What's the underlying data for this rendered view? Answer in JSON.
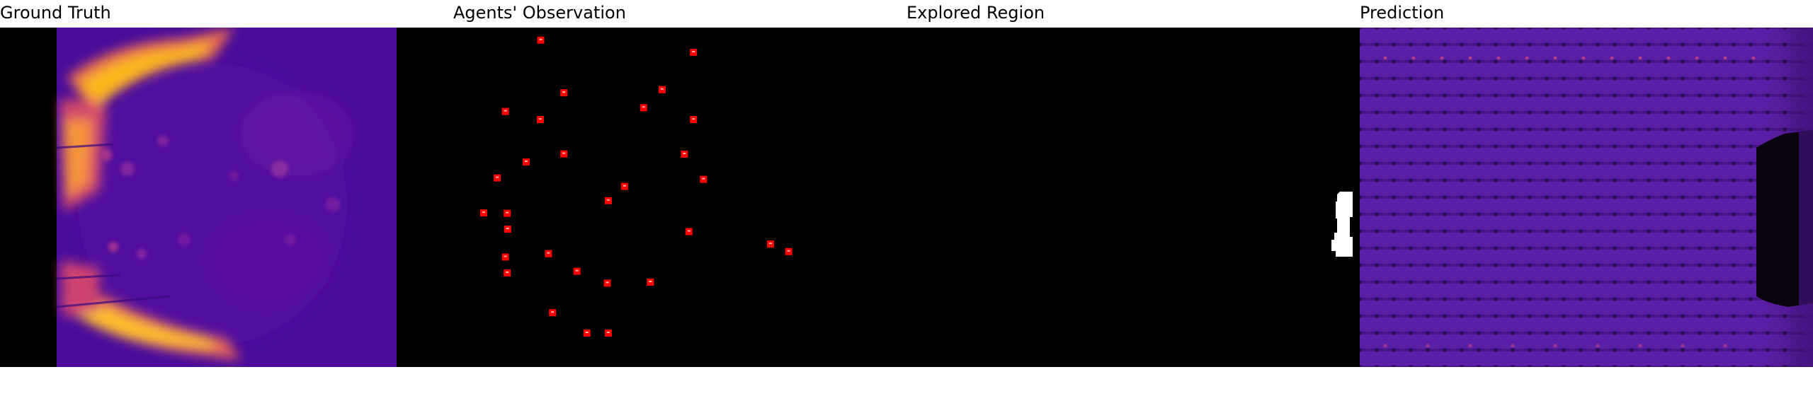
{
  "panels": [
    {
      "key": "ground_truth",
      "title": "Ground Truth",
      "colormap": "plasma"
    },
    {
      "key": "observation",
      "title": "Agents' Observation",
      "marker_color": "#ff0000"
    },
    {
      "key": "explored",
      "title": "Explored Region"
    },
    {
      "key": "prediction",
      "title": "Prediction",
      "colormap": "plasma"
    }
  ],
  "observation_points": [
    [
      0.193,
      0.037
    ],
    [
      0.53,
      0.073
    ],
    [
      0.244,
      0.192
    ],
    [
      0.42,
      0.236
    ],
    [
      0.461,
      0.183
    ],
    [
      0.115,
      0.247
    ],
    [
      0.192,
      0.271
    ],
    [
      0.53,
      0.271
    ],
    [
      0.244,
      0.372
    ],
    [
      0.51,
      0.373
    ],
    [
      0.161,
      0.396
    ],
    [
      0.097,
      0.443
    ],
    [
      0.552,
      0.447
    ],
    [
      0.378,
      0.468
    ],
    [
      0.342,
      0.51
    ],
    [
      0.067,
      0.546
    ],
    [
      0.119,
      0.547
    ],
    [
      0.12,
      0.594
    ],
    [
      0.52,
      0.601
    ],
    [
      0.7,
      0.638
    ],
    [
      0.74,
      0.66
    ],
    [
      0.21,
      0.666
    ],
    [
      0.115,
      0.676
    ],
    [
      0.273,
      0.718
    ],
    [
      0.119,
      0.723
    ],
    [
      0.34,
      0.753
    ],
    [
      0.435,
      0.75
    ],
    [
      0.219,
      0.84
    ],
    [
      0.295,
      0.9
    ],
    [
      0.342,
      0.9
    ]
  ]
}
